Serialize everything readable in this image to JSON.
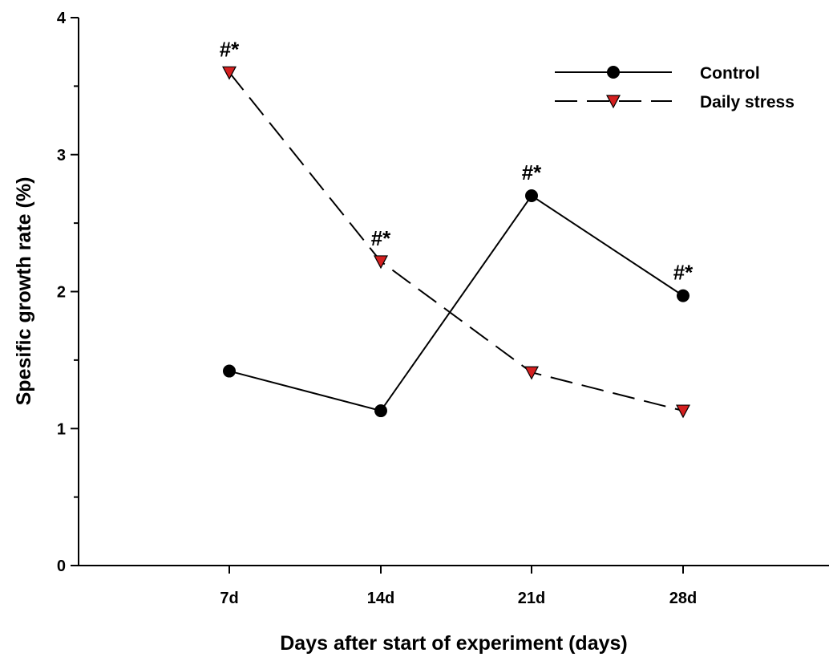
{
  "chart_data": {
    "type": "line",
    "categories": [
      "7d",
      "14d",
      "21d",
      "28d"
    ],
    "xlabel": "Days after start of experiment (days)",
    "ylabel": "Spesific growth rate (%)",
    "ylim": [
      0,
      4
    ],
    "yticks": [
      "0",
      "1",
      "2",
      "3",
      "4"
    ],
    "legend_position": "top-right",
    "grid": false,
    "series": [
      {
        "name": "Control",
        "values": [
          1.42,
          1.13,
          2.7,
          1.97
        ],
        "marker": "circle",
        "line_style": "solid",
        "color": "#000000"
      },
      {
        "name": "Daily stress",
        "values": [
          3.6,
          2.22,
          1.41,
          1.13
        ],
        "marker": "triangle-down",
        "line_style": "dashed",
        "color": "#000000",
        "marker_fill": "#d41f1f"
      }
    ],
    "annotations": [
      {
        "text": "#*",
        "series": 1,
        "index": 0
      },
      {
        "text": "#*",
        "series": 1,
        "index": 1
      },
      {
        "text": "#*",
        "series": 0,
        "index": 2
      },
      {
        "text": "#*",
        "series": 0,
        "index": 3
      }
    ]
  }
}
